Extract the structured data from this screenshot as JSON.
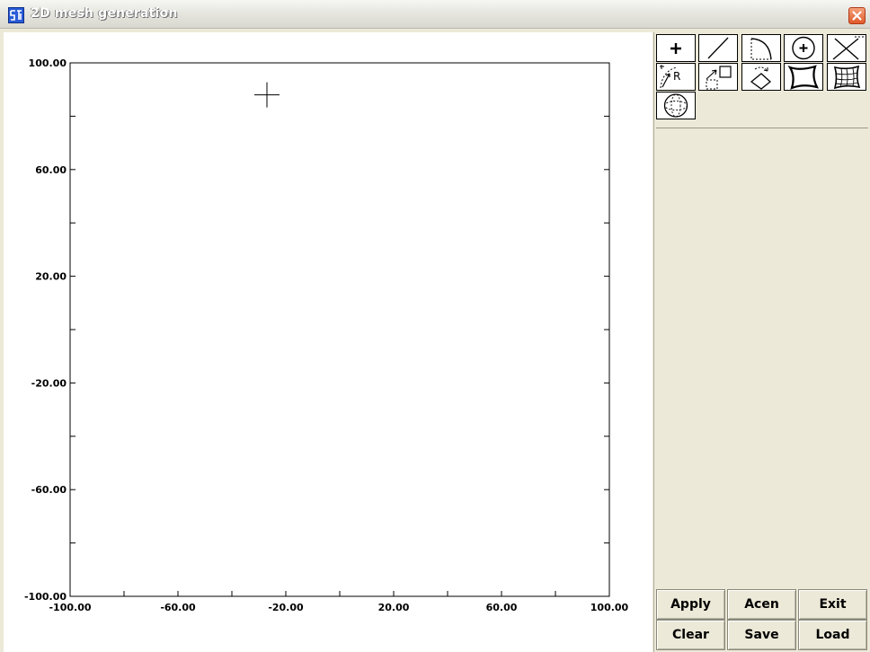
{
  "window": {
    "title": "2D mesh generation",
    "app_icon": "app-logo-icon",
    "close_icon": "close-icon"
  },
  "plot": {
    "y_ticks": [
      "100.00",
      "60.00",
      "20.00",
      "-20.00",
      "-60.00",
      "-100.00"
    ],
    "x_ticks": [
      "-100.00",
      "-60.00",
      "-20.00",
      "20.00",
      "60.00",
      "100.00"
    ],
    "xlim": [
      -100,
      100
    ],
    "ylim": [
      -100,
      100
    ],
    "cursor": {
      "x": -27,
      "y": 88
    }
  },
  "tools": {
    "row1": [
      "point-tool-icon",
      "line-tool-icon",
      "arc-tool-icon",
      "circle-center-tool-icon",
      "delete-tool-icon"
    ],
    "row2": [
      "radius-tool-icon",
      "scale-tool-icon",
      "rotate-tool-icon",
      "region-tool-icon",
      "mesh-tool-icon"
    ],
    "row3": [
      "sphere-tool-icon"
    ]
  },
  "buttons": {
    "apply": "Apply",
    "acen": "Acen",
    "exit": "Exit",
    "clear": "Clear",
    "save": "Save",
    "load": "Load"
  }
}
